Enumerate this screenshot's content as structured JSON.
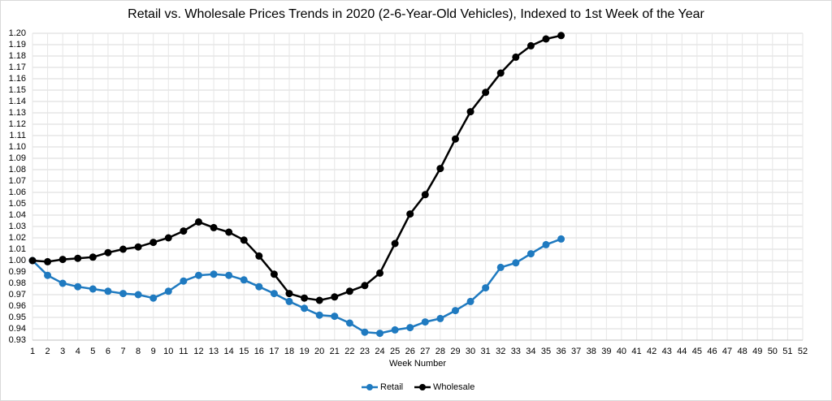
{
  "chart_data": {
    "type": "line",
    "title": "Retail vs. Wholesale Prices Trends in 2020 (2-6-Year-Old Vehicles), Indexed to 1st Week of the Year",
    "x_label": "Week Number",
    "categories": [
      1,
      2,
      3,
      4,
      5,
      6,
      7,
      8,
      9,
      10,
      11,
      12,
      13,
      14,
      15,
      16,
      17,
      18,
      19,
      20,
      21,
      22,
      23,
      24,
      25,
      26,
      27,
      28,
      29,
      30,
      31,
      32,
      33,
      34,
      35,
      36,
      37,
      38,
      39,
      40,
      41,
      42,
      43,
      44,
      45,
      46,
      47,
      48,
      49,
      50,
      51,
      52
    ],
    "series": [
      {
        "name": "Retail",
        "color": "#1f7ac0",
        "values": [
          1.0,
          0.987,
          0.98,
          0.977,
          0.975,
          0.973,
          0.971,
          0.97,
          0.967,
          0.973,
          0.982,
          0.987,
          0.988,
          0.987,
          0.983,
          0.977,
          0.971,
          0.964,
          0.958,
          0.952,
          0.951,
          0.945,
          0.937,
          0.936,
          0.939,
          0.941,
          0.946,
          0.949,
          0.956,
          0.964,
          0.976,
          0.994,
          0.998,
          1.006,
          1.014,
          1.019,
          null,
          null,
          null,
          null,
          null,
          null,
          null,
          null,
          null,
          null,
          null,
          null,
          null,
          null,
          null,
          null
        ]
      },
      {
        "name": "Wholesale",
        "color": "#000000",
        "values": [
          1.0,
          0.999,
          1.001,
          1.002,
          1.003,
          1.007,
          1.01,
          1.012,
          1.016,
          1.02,
          1.026,
          1.034,
          1.029,
          1.025,
          1.018,
          1.004,
          0.988,
          0.971,
          0.967,
          0.965,
          0.968,
          0.973,
          0.978,
          0.989,
          1.015,
          1.041,
          1.058,
          1.081,
          1.107,
          1.131,
          1.148,
          1.165,
          1.179,
          1.189,
          1.195,
          1.198,
          null,
          null,
          null,
          null,
          null,
          null,
          null,
          null,
          null,
          null,
          null,
          null,
          null,
          null,
          null,
          null
        ]
      }
    ],
    "ylim": [
      0.93,
      1.2
    ],
    "yticks": [
      0.93,
      0.94,
      0.95,
      0.96,
      0.97,
      0.98,
      0.99,
      {
        "value": 1.0,
        "label": "1.00"
      },
      1.01,
      1.02,
      1.03,
      1.04,
      1.05,
      1.06,
      1.07,
      1.08,
      1.09,
      {
        "value": 1.1,
        "label": "1.10"
      },
      1.11,
      1.12,
      1.13,
      1.14,
      1.15,
      1.16,
      1.17,
      1.18,
      1.19,
      {
        "value": 1.2,
        "label": "1.20"
      }
    ],
    "grid": true,
    "legend": "bottom"
  }
}
